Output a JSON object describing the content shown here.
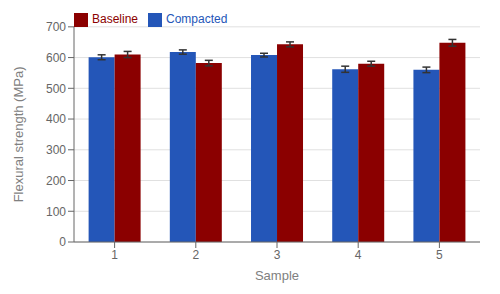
{
  "chart_data": {
    "type": "bar",
    "xlabel": "Sample",
    "ylabel": "Flexural strength (MPa)",
    "categories": [
      "1",
      "2",
      "3",
      "4",
      "5"
    ],
    "series": [
      {
        "name": "Compacted",
        "color": "#2456b8",
        "values": [
          601,
          618,
          608,
          562,
          560
        ],
        "errors": [
          8,
          7,
          6,
          10,
          9
        ]
      },
      {
        "name": "Baseline",
        "color": "#8b0000",
        "values": [
          610,
          582,
          643,
          580,
          648
        ],
        "errors": [
          10,
          9,
          8,
          8,
          11
        ]
      }
    ],
    "ylim": [
      0,
      700
    ],
    "yticks": [
      0,
      100,
      200,
      300,
      400,
      500,
      600,
      700
    ],
    "grid": true,
    "legend": "upper left"
  }
}
